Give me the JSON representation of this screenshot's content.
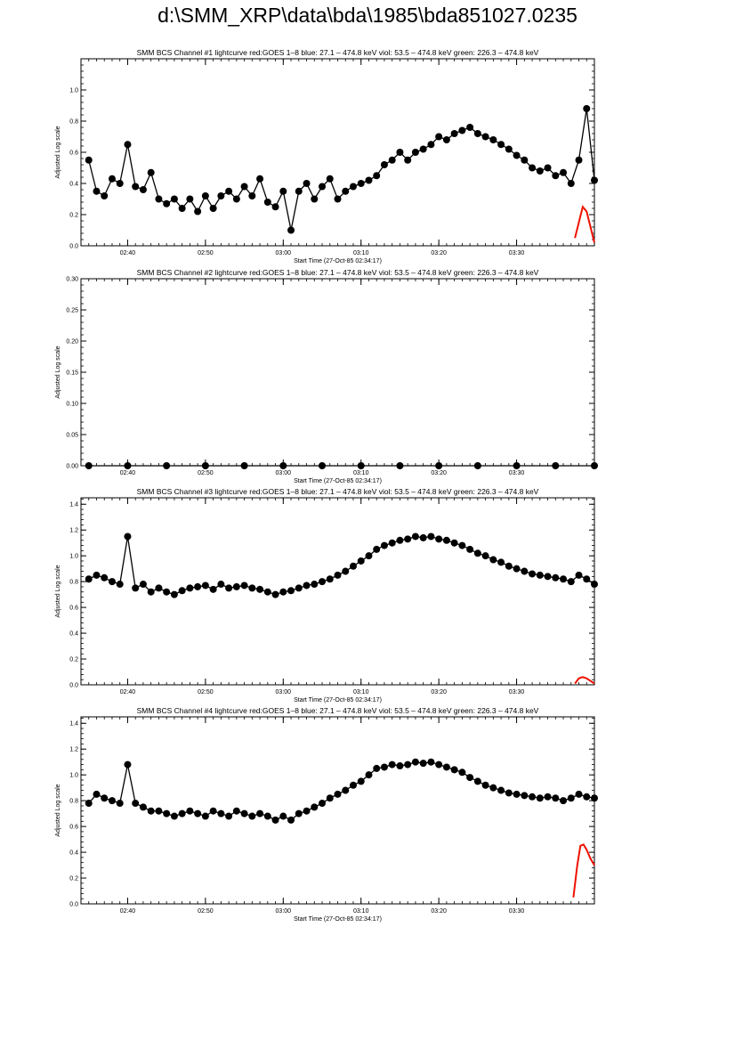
{
  "page": {
    "title": "d:\\SMM_XRP\\data\\bda\\1985\\bda851027.0235"
  },
  "colors": {
    "points": "#000000",
    "goes": "#ee1100",
    "axes": "#000000"
  },
  "chart_data": [
    {
      "type": "scatter",
      "title": "SMM BCS Channel #1 lightcurve  red:GOES 1–8  blue: 27.1 – 474.8 keV  viol: 53.5 – 474.8 keV  green: 226.3 – 474.8 keV",
      "xlabel": "Start Time (27-Oct-85 02:34:17)",
      "ylabel": "Adjusted Log scale",
      "xlim": [
        154,
        220
      ],
      "ylim": [
        0,
        1.2
      ],
      "yticks": [
        "0.0",
        "0.2",
        "0.4",
        "0.6",
        "0.8",
        "1.0"
      ],
      "xticks": [
        "02:40",
        "02:50",
        "03:00",
        "03:10",
        "03:20",
        "03:30"
      ],
      "grid": false,
      "bcs": {
        "name": "BCS",
        "points": [
          [
            155,
            0.55
          ],
          [
            156,
            0.35
          ],
          [
            157,
            0.32
          ],
          [
            158,
            0.43
          ],
          [
            159,
            0.4
          ],
          [
            160,
            0.65
          ],
          [
            161,
            0.38
          ],
          [
            162,
            0.36
          ],
          [
            163,
            0.47
          ],
          [
            164,
            0.3
          ],
          [
            165,
            0.27
          ],
          [
            166,
            0.3
          ],
          [
            167,
            0.24
          ],
          [
            168,
            0.3
          ],
          [
            169,
            0.22
          ],
          [
            170,
            0.32
          ],
          [
            171,
            0.24
          ],
          [
            172,
            0.32
          ],
          [
            173,
            0.35
          ],
          [
            174,
            0.3
          ],
          [
            175,
            0.38
          ],
          [
            176,
            0.32
          ],
          [
            177,
            0.43
          ],
          [
            178,
            0.28
          ],
          [
            179,
            0.25
          ],
          [
            180,
            0.35
          ],
          [
            181,
            0.1
          ],
          [
            182,
            0.35
          ],
          [
            183,
            0.4
          ],
          [
            184,
            0.3
          ],
          [
            185,
            0.38
          ],
          [
            186,
            0.43
          ],
          [
            187,
            0.3
          ],
          [
            188,
            0.35
          ],
          [
            189,
            0.38
          ],
          [
            190,
            0.4
          ],
          [
            191,
            0.42
          ],
          [
            192,
            0.45
          ],
          [
            193,
            0.52
          ],
          [
            194,
            0.55
          ],
          [
            195,
            0.6
          ],
          [
            196,
            0.55
          ],
          [
            197,
            0.6
          ],
          [
            198,
            0.62
          ],
          [
            199,
            0.65
          ],
          [
            200,
            0.7
          ],
          [
            201,
            0.68
          ],
          [
            202,
            0.72
          ],
          [
            203,
            0.74
          ],
          [
            204,
            0.76
          ],
          [
            205,
            0.72
          ],
          [
            206,
            0.7
          ],
          [
            207,
            0.68
          ],
          [
            208,
            0.65
          ],
          [
            209,
            0.62
          ],
          [
            210,
            0.58
          ],
          [
            211,
            0.55
          ],
          [
            212,
            0.5
          ],
          [
            213,
            0.48
          ],
          [
            214,
            0.5
          ],
          [
            215,
            0.45
          ],
          [
            216,
            0.47
          ],
          [
            217,
            0.4
          ],
          [
            218,
            0.55
          ],
          [
            219,
            0.88
          ],
          [
            220,
            0.42
          ]
        ]
      },
      "goes": {
        "name": "GOES 1–8",
        "points": [
          [
            217.5,
            0.05
          ],
          [
            218,
            0.15
          ],
          [
            218.5,
            0.25
          ],
          [
            219,
            0.22
          ],
          [
            219.5,
            0.12
          ],
          [
            220,
            0.02
          ]
        ]
      }
    },
    {
      "type": "scatter",
      "title": "SMM BCS Channel #2 lightcurve  red:GOES 1–8  blue: 27.1 – 474.8 keV  viol: 53.5 – 474.8 keV  green: 226.3 – 474.8 keV",
      "xlabel": "Start Time (27-Oct-85 02:34:17)",
      "ylabel": "Adjusted Log scale",
      "xlim": [
        154,
        220
      ],
      "ylim": [
        0,
        0.3
      ],
      "yticks": [
        "0.00",
        "0.05",
        "0.10",
        "0.15",
        "0.20",
        "0.25",
        "0.30"
      ],
      "xticks": [
        "02:40",
        "02:50",
        "03:00",
        "03:10",
        "03:20",
        "03:30"
      ],
      "grid": false,
      "bcs": {
        "name": "BCS",
        "points": [
          [
            155,
            0
          ],
          [
            160,
            0
          ],
          [
            165,
            0
          ],
          [
            170,
            0
          ],
          [
            175,
            0
          ],
          [
            180,
            0
          ],
          [
            185,
            0
          ],
          [
            190,
            0
          ],
          [
            195,
            0
          ],
          [
            200,
            0
          ],
          [
            205,
            0
          ],
          [
            210,
            0
          ],
          [
            215,
            0
          ],
          [
            220,
            0
          ]
        ]
      },
      "goes": {
        "name": "GOES 1–8",
        "points": []
      }
    },
    {
      "type": "scatter",
      "title": "SMM BCS Channel #3 lightcurve  red:GOES 1–8  blue: 27.1 – 474.8 keV  viol: 53.5 – 474.8 keV  green: 226.3 – 474.8 keV",
      "xlabel": "Start Time (27-Oct-85 02:34:17)",
      "ylabel": "Adjusted Log scale",
      "xlim": [
        154,
        220
      ],
      "ylim": [
        0,
        1.45
      ],
      "yticks": [
        "0.0",
        "0.2",
        "0.4",
        "0.6",
        "0.8",
        "1.0",
        "1.2",
        "1.4"
      ],
      "xticks": [
        "02:40",
        "02:50",
        "03:00",
        "03:10",
        "03:20",
        "03:30"
      ],
      "grid": false,
      "bcs": {
        "name": "BCS",
        "points": [
          [
            155,
            0.82
          ],
          [
            156,
            0.85
          ],
          [
            157,
            0.83
          ],
          [
            158,
            0.8
          ],
          [
            159,
            0.78
          ],
          [
            160,
            1.15
          ],
          [
            161,
            0.75
          ],
          [
            162,
            0.78
          ],
          [
            163,
            0.72
          ],
          [
            164,
            0.75
          ],
          [
            165,
            0.72
          ],
          [
            166,
            0.7
          ],
          [
            167,
            0.73
          ],
          [
            168,
            0.75
          ],
          [
            169,
            0.76
          ],
          [
            170,
            0.77
          ],
          [
            171,
            0.74
          ],
          [
            172,
            0.78
          ],
          [
            173,
            0.75
          ],
          [
            174,
            0.76
          ],
          [
            175,
            0.77
          ],
          [
            176,
            0.75
          ],
          [
            177,
            0.74
          ],
          [
            178,
            0.72
          ],
          [
            179,
            0.7
          ],
          [
            180,
            0.72
          ],
          [
            181,
            0.73
          ],
          [
            182,
            0.75
          ],
          [
            183,
            0.77
          ],
          [
            184,
            0.78
          ],
          [
            185,
            0.8
          ],
          [
            186,
            0.82
          ],
          [
            187,
            0.85
          ],
          [
            188,
            0.88
          ],
          [
            189,
            0.92
          ],
          [
            190,
            0.96
          ],
          [
            191,
            1.0
          ],
          [
            192,
            1.05
          ],
          [
            193,
            1.08
          ],
          [
            194,
            1.1
          ],
          [
            195,
            1.12
          ],
          [
            196,
            1.13
          ],
          [
            197,
            1.15
          ],
          [
            198,
            1.14
          ],
          [
            199,
            1.15
          ],
          [
            200,
            1.13
          ],
          [
            201,
            1.12
          ],
          [
            202,
            1.1
          ],
          [
            203,
            1.08
          ],
          [
            204,
            1.05
          ],
          [
            205,
            1.02
          ],
          [
            206,
            1.0
          ],
          [
            207,
            0.97
          ],
          [
            208,
            0.95
          ],
          [
            209,
            0.92
          ],
          [
            210,
            0.9
          ],
          [
            211,
            0.88
          ],
          [
            212,
            0.86
          ],
          [
            213,
            0.85
          ],
          [
            214,
            0.84
          ],
          [
            215,
            0.83
          ],
          [
            216,
            0.82
          ],
          [
            217,
            0.8
          ],
          [
            218,
            0.85
          ],
          [
            219,
            0.82
          ],
          [
            220,
            0.78
          ]
        ]
      },
      "goes": {
        "name": "GOES 1–8",
        "points": [
          [
            217.5,
            0.01
          ],
          [
            218,
            0.05
          ],
          [
            218.5,
            0.06
          ],
          [
            219,
            0.05
          ],
          [
            219.5,
            0.03
          ],
          [
            220,
            0.01
          ]
        ]
      }
    },
    {
      "type": "scatter",
      "title": "SMM BCS Channel #4 lightcurve  red:GOES 1–8  blue: 27.1 – 474.8 keV  viol: 53.5 – 474.8 keV  green: 226.3 – 474.8 keV",
      "xlabel": "Start Time (27-Oct-85 02:34:17)",
      "ylabel": "Adjusted Log scale",
      "xlim": [
        154,
        220
      ],
      "ylim": [
        0,
        1.45
      ],
      "yticks": [
        "0.0",
        "0.2",
        "0.4",
        "0.6",
        "0.8",
        "1.0",
        "1.2",
        "1.4"
      ],
      "xticks": [
        "02:40",
        "02:50",
        "03:00",
        "03:10",
        "03:20",
        "03:30"
      ],
      "grid": false,
      "bcs": {
        "name": "BCS",
        "points": [
          [
            155,
            0.78
          ],
          [
            156,
            0.85
          ],
          [
            157,
            0.82
          ],
          [
            158,
            0.8
          ],
          [
            159,
            0.78
          ],
          [
            160,
            1.08
          ],
          [
            161,
            0.78
          ],
          [
            162,
            0.75
          ],
          [
            163,
            0.72
          ],
          [
            164,
            0.72
          ],
          [
            165,
            0.7
          ],
          [
            166,
            0.68
          ],
          [
            167,
            0.7
          ],
          [
            168,
            0.72
          ],
          [
            169,
            0.7
          ],
          [
            170,
            0.68
          ],
          [
            171,
            0.72
          ],
          [
            172,
            0.7
          ],
          [
            173,
            0.68
          ],
          [
            174,
            0.72
          ],
          [
            175,
            0.7
          ],
          [
            176,
            0.68
          ],
          [
            177,
            0.7
          ],
          [
            178,
            0.68
          ],
          [
            179,
            0.65
          ],
          [
            180,
            0.68
          ],
          [
            181,
            0.65
          ],
          [
            182,
            0.7
          ],
          [
            183,
            0.72
          ],
          [
            184,
            0.75
          ],
          [
            185,
            0.78
          ],
          [
            186,
            0.82
          ],
          [
            187,
            0.85
          ],
          [
            188,
            0.88
          ],
          [
            189,
            0.92
          ],
          [
            190,
            0.95
          ],
          [
            191,
            1.0
          ],
          [
            192,
            1.05
          ],
          [
            193,
            1.06
          ],
          [
            194,
            1.08
          ],
          [
            195,
            1.07
          ],
          [
            196,
            1.08
          ],
          [
            197,
            1.1
          ],
          [
            198,
            1.09
          ],
          [
            199,
            1.1
          ],
          [
            200,
            1.08
          ],
          [
            201,
            1.06
          ],
          [
            202,
            1.04
          ],
          [
            203,
            1.02
          ],
          [
            204,
            0.98
          ],
          [
            205,
            0.95
          ],
          [
            206,
            0.92
          ],
          [
            207,
            0.9
          ],
          [
            208,
            0.88
          ],
          [
            209,
            0.86
          ],
          [
            210,
            0.85
          ],
          [
            211,
            0.84
          ],
          [
            212,
            0.83
          ],
          [
            213,
            0.82
          ],
          [
            214,
            0.83
          ],
          [
            215,
            0.82
          ],
          [
            216,
            0.8
          ],
          [
            217,
            0.82
          ],
          [
            218,
            0.85
          ],
          [
            219,
            0.83
          ],
          [
            220,
            0.82
          ]
        ]
      },
      "goes": {
        "name": "GOES 1–8",
        "points": [
          [
            217.3,
            0.05
          ],
          [
            217.8,
            0.3
          ],
          [
            218.2,
            0.45
          ],
          [
            218.6,
            0.46
          ],
          [
            219,
            0.42
          ],
          [
            219.5,
            0.35
          ],
          [
            220,
            0.3
          ]
        ]
      }
    }
  ]
}
